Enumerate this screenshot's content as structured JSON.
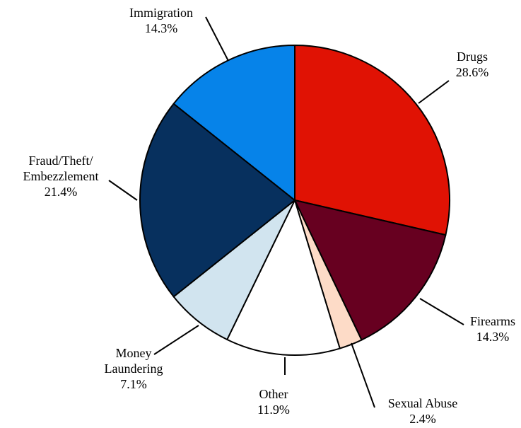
{
  "chart_data": {
    "type": "pie",
    "start_angle_deg": 0,
    "direction": "clockwise",
    "slices": [
      {
        "label": [
          "Drugs"
        ],
        "value_label": "28.6%",
        "value": 28.6,
        "color": "#e01204"
      },
      {
        "label": [
          "Firearms"
        ],
        "value_label": "14.3%",
        "value": 14.3,
        "color": "#670020"
      },
      {
        "label": [
          "Sexual Abuse"
        ],
        "value_label": "2.4%",
        "value": 2.4,
        "color": "#fddbc7"
      },
      {
        "label": [
          "Other"
        ],
        "value_label": "11.9%",
        "value": 11.9,
        "color": "#ffffff"
      },
      {
        "label": [
          "Money",
          "Laundering"
        ],
        "value_label": "7.1%",
        "value": 7.1,
        "color": "#d1e4ef"
      },
      {
        "label": [
          "Fraud/Theft/",
          "Embezzlement"
        ],
        "value_label": "21.4%",
        "value": 21.4,
        "color": "#07305e"
      },
      {
        "label": [
          "Immigration"
        ],
        "value_label": "14.3%",
        "value": 14.3,
        "color": "#0683e9"
      }
    ]
  }
}
